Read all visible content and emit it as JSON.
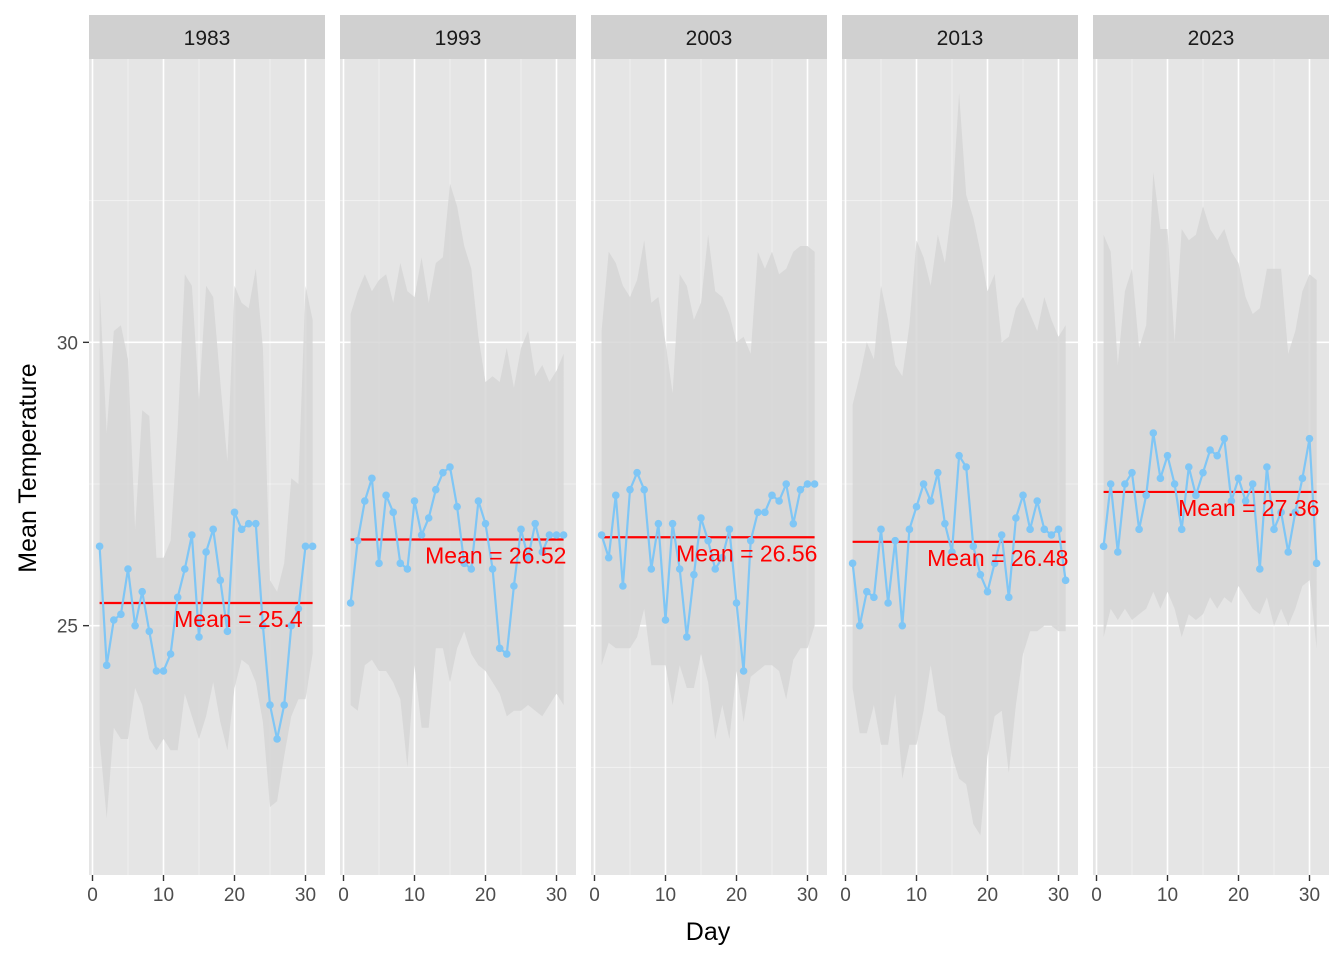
{
  "chart_data": {
    "type": "line",
    "xlabel": "Day",
    "ylabel": "Mean Temperature",
    "xlim": [
      0,
      32
    ],
    "ylim": [
      20.6,
      35.0
    ],
    "x_ticks": [
      0,
      10,
      20,
      30
    ],
    "y_ticks": [
      25,
      30
    ],
    "grid": true,
    "legend": "none",
    "colors": {
      "line": "#7fc6f5",
      "mean": "#ff0000",
      "ribbon": "#d6d6d6",
      "panel_bg": "#e5e5e5",
      "strip_bg": "#d0d0d0",
      "grid": "#ffffff"
    },
    "panels": [
      {
        "title": "1983",
        "mean": 25.4,
        "mean_label": "Mean = 25.4",
        "days": [
          1,
          2,
          3,
          4,
          5,
          6,
          7,
          8,
          9,
          10,
          11,
          12,
          13,
          14,
          15,
          16,
          17,
          18,
          19,
          20,
          21,
          22,
          23,
          24,
          25,
          26,
          27,
          28,
          29,
          30,
          31
        ],
        "values": [
          26.4,
          24.3,
          25.1,
          25.2,
          26.0,
          25.0,
          25.6,
          24.9,
          24.2,
          24.2,
          24.5,
          25.5,
          26.0,
          26.6,
          24.8,
          26.3,
          26.7,
          25.8,
          24.9,
          27.0,
          26.7,
          26.8,
          26.8,
          25.0,
          23.6,
          23.0,
          23.6,
          25.0,
          25.3,
          26.4,
          26.4
        ],
        "ribbon_upper": [
          31.0,
          28.4,
          30.2,
          30.3,
          29.7,
          26.7,
          28.8,
          28.7,
          26.2,
          26.2,
          26.5,
          28.5,
          31.2,
          31.0,
          29.0,
          31.0,
          30.8,
          29.3,
          27.9,
          31.0,
          30.7,
          30.6,
          31.3,
          29.9,
          25.8,
          25.6,
          26.1,
          27.6,
          27.5,
          31.0,
          30.4
        ],
        "ribbon_lower": [
          23.0,
          21.6,
          23.2,
          23.0,
          23.0,
          23.9,
          23.6,
          23.0,
          22.8,
          23.0,
          22.8,
          22.8,
          23.8,
          23.4,
          23.0,
          23.4,
          24.0,
          23.3,
          22.8,
          23.9,
          24.4,
          24.3,
          24.0,
          23.3,
          21.8,
          21.9,
          22.7,
          23.4,
          23.7,
          23.7,
          24.5
        ]
      },
      {
        "title": "1993",
        "mean": 26.52,
        "mean_label": "Mean = 26.52",
        "days": [
          1,
          2,
          3,
          4,
          5,
          6,
          7,
          8,
          9,
          10,
          11,
          12,
          13,
          14,
          15,
          16,
          17,
          18,
          19,
          20,
          21,
          22,
          23,
          24,
          25,
          26,
          27,
          28,
          29,
          30,
          31
        ],
        "values": [
          25.4,
          26.5,
          27.2,
          27.6,
          26.1,
          27.3,
          27.0,
          26.1,
          26.0,
          27.2,
          26.6,
          26.9,
          27.4,
          27.7,
          27.8,
          27.1,
          26.1,
          26.0,
          27.2,
          26.8,
          26.0,
          24.6,
          24.5,
          25.7,
          26.7,
          26.2,
          26.8,
          26.3,
          26.6,
          26.6,
          26.6
        ],
        "ribbon_upper": [
          30.5,
          30.9,
          31.2,
          30.9,
          31.1,
          31.2,
          30.7,
          31.4,
          30.9,
          30.8,
          31.5,
          30.7,
          31.4,
          31.5,
          32.8,
          32.4,
          31.7,
          31.3,
          30.1,
          29.3,
          29.4,
          29.3,
          29.9,
          29.2,
          29.9,
          30.2,
          29.4,
          29.6,
          29.3,
          29.5,
          29.8
        ],
        "ribbon_lower": [
          23.6,
          23.5,
          24.3,
          24.4,
          24.2,
          24.2,
          24.0,
          23.7,
          22.5,
          24.3,
          23.2,
          23.2,
          24.6,
          24.6,
          24.0,
          24.6,
          24.9,
          24.5,
          24.3,
          24.2,
          24.0,
          23.8,
          23.4,
          23.5,
          23.5,
          23.6,
          23.5,
          23.4,
          23.6,
          23.8,
          23.6
        ]
      },
      {
        "title": "2003",
        "mean": 26.56,
        "mean_label": "Mean = 26.56",
        "days": [
          1,
          2,
          3,
          4,
          5,
          6,
          7,
          8,
          9,
          10,
          11,
          12,
          13,
          14,
          15,
          16,
          17,
          18,
          19,
          20,
          21,
          22,
          23,
          24,
          25,
          26,
          27,
          28,
          29,
          30,
          31
        ],
        "values": [
          26.6,
          26.2,
          27.3,
          25.7,
          27.4,
          27.7,
          27.4,
          26.0,
          26.8,
          25.1,
          26.8,
          26.0,
          24.8,
          25.9,
          26.9,
          26.5,
          26.0,
          26.2,
          26.7,
          25.4,
          24.2,
          26.5,
          27.0,
          27.0,
          27.3,
          27.2,
          27.5,
          26.8,
          27.4,
          27.5,
          27.5
        ],
        "ribbon_upper": [
          30.2,
          31.6,
          31.4,
          31.0,
          30.8,
          31.1,
          31.8,
          30.7,
          30.8,
          30.0,
          29.1,
          31.2,
          31.0,
          30.4,
          30.7,
          31.9,
          30.9,
          30.8,
          30.5,
          30.0,
          30.1,
          29.8,
          31.6,
          31.3,
          31.6,
          31.2,
          31.3,
          31.6,
          31.7,
          31.7,
          31.6
        ],
        "ribbon_lower": [
          24.3,
          24.7,
          24.6,
          24.6,
          24.6,
          24.8,
          25.3,
          24.3,
          24.3,
          24.3,
          23.6,
          24.3,
          23.9,
          23.9,
          24.5,
          24.0,
          23.0,
          23.6,
          23.0,
          24.2,
          23.3,
          24.1,
          24.2,
          24.3,
          24.3,
          24.2,
          23.7,
          24.4,
          24.6,
          24.6,
          25.0
        ]
      },
      {
        "title": "2013",
        "mean": 26.48,
        "mean_label": "Mean = 26.48",
        "days": [
          1,
          2,
          3,
          4,
          5,
          6,
          7,
          8,
          9,
          10,
          11,
          12,
          13,
          14,
          15,
          16,
          17,
          18,
          19,
          20,
          21,
          22,
          23,
          24,
          25,
          26,
          27,
          28,
          29,
          30,
          31
        ],
        "values": [
          26.1,
          25.0,
          25.6,
          25.5,
          26.7,
          25.4,
          26.5,
          25.0,
          26.7,
          27.1,
          27.5,
          27.2,
          27.7,
          26.8,
          26.3,
          28.0,
          27.8,
          26.4,
          25.9,
          25.6,
          26.1,
          26.6,
          25.5,
          26.9,
          27.3,
          26.7,
          27.2,
          26.7,
          26.6,
          26.7,
          25.8
        ],
        "ribbon_upper": [
          28.9,
          29.4,
          30.0,
          29.7,
          31.0,
          30.4,
          29.6,
          29.4,
          30.3,
          31.8,
          31.5,
          31.0,
          31.9,
          31.4,
          32.4,
          34.4,
          32.6,
          32.2,
          31.6,
          30.9,
          31.2,
          30.0,
          30.1,
          30.6,
          30.8,
          30.5,
          30.2,
          30.8,
          30.4,
          30.1,
          30.3
        ],
        "ribbon_lower": [
          23.9,
          23.1,
          23.1,
          23.6,
          22.9,
          22.9,
          23.8,
          22.3,
          22.9,
          22.9,
          23.5,
          24.3,
          23.5,
          23.4,
          22.7,
          22.3,
          22.2,
          21.5,
          21.3,
          22.7,
          23.4,
          23.5,
          22.4,
          23.6,
          24.5,
          24.9,
          24.9,
          25.0,
          25.0,
          24.9,
          24.9
        ],
        "__note": "ribbon approximate"
      },
      {
        "title": "2023",
        "mean": 27.36,
        "mean_label": "Mean = 27.36",
        "days": [
          1,
          2,
          3,
          4,
          5,
          6,
          7,
          8,
          9,
          10,
          11,
          12,
          13,
          14,
          15,
          16,
          17,
          18,
          19,
          20,
          21,
          22,
          23,
          24,
          25,
          26,
          27,
          28,
          29,
          30,
          31
        ],
        "values": [
          26.4,
          27.5,
          26.3,
          27.5,
          27.7,
          26.7,
          27.3,
          28.4,
          27.6,
          28.0,
          27.5,
          26.7,
          27.8,
          27.3,
          27.7,
          28.1,
          28.0,
          28.3,
          27.2,
          27.6,
          27.2,
          27.5,
          26.0,
          27.8,
          26.7,
          27.0,
          26.3,
          27.0,
          27.6,
          28.3,
          26.1
        ],
        "ribbon_upper": [
          31.9,
          31.6,
          29.6,
          30.9,
          31.3,
          29.9,
          30.3,
          33.0,
          32.0,
          32.0,
          30.0,
          32.0,
          31.8,
          31.9,
          32.4,
          32.0,
          31.8,
          32.0,
          31.6,
          31.4,
          30.8,
          30.5,
          30.6,
          31.3,
          31.3,
          31.3,
          29.8,
          30.2,
          30.9,
          31.2,
          31.1
        ],
        "ribbon_lower": [
          24.8,
          25.3,
          25.1,
          25.3,
          25.1,
          25.2,
          25.3,
          25.6,
          25.3,
          25.6,
          25.3,
          24.8,
          25.2,
          25.1,
          25.2,
          25.5,
          25.3,
          25.5,
          25.4,
          25.7,
          25.5,
          25.3,
          25.2,
          25.5,
          25.0,
          25.3,
          25.0,
          25.3,
          25.7,
          25.8,
          24.6
        ]
      }
    ]
  }
}
